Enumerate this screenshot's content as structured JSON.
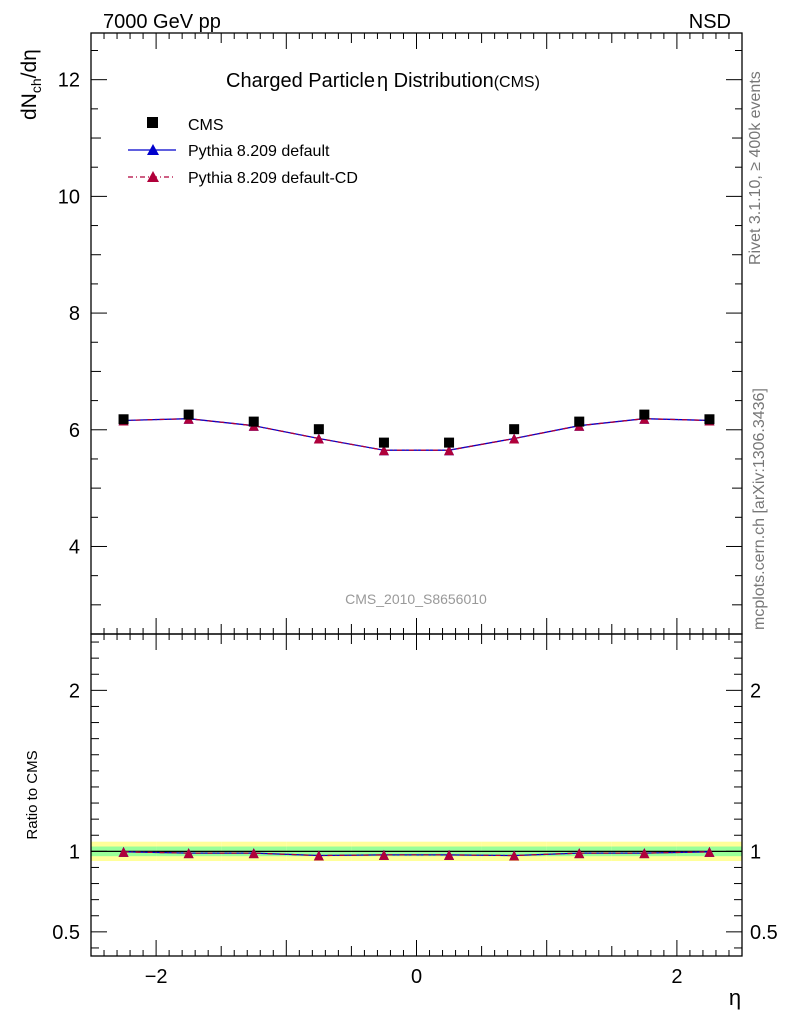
{
  "header": {
    "left_label": "7000 GeV pp",
    "right_label": "NSD"
  },
  "side_labels": {
    "rivet": "Rivet 3.1.10, ≥ 400k events",
    "mcplots": "mcplots.cern.ch [arXiv:1306.3436]"
  },
  "analysis_id": "CMS_2010_S8656010",
  "colors": {
    "cms": "#000000",
    "pythia_default": "#0000cc",
    "pythia_cd": "#b0003a",
    "band_inner": "#99ff99",
    "band_outer": "#ffff99"
  },
  "chart_data": [
    {
      "type": "scatter",
      "title": "Charged Particle",
      "title_symbol": "η",
      "title_rest": " Distribution",
      "title_suffix": "(CMS)",
      "ylabel": "dN",
      "ylabel_sub": "ch",
      "ylabel_rest": "/dη",
      "xlim": [
        -2.5,
        2.5
      ],
      "ylim": [
        2.5,
        12.8
      ],
      "yticks": [
        4,
        6,
        8,
        10,
        12
      ],
      "ytick_labels": [
        "4",
        "6",
        "8",
        "10",
        "12"
      ],
      "x": [
        -2.25,
        -1.75,
        -1.25,
        -0.75,
        -0.25,
        0.25,
        0.75,
        1.25,
        1.75,
        2.25
      ],
      "legend": [
        "CMS",
        "Pythia 8.209 default",
        "Pythia 8.209 default-CD"
      ],
      "series": [
        {
          "name": "CMS",
          "values": [
            6.18,
            6.26,
            6.14,
            6.01,
            5.78,
            5.78,
            6.01,
            6.14,
            6.26,
            6.18
          ]
        },
        {
          "name": "Pythia 8.209 default",
          "values": [
            6.16,
            6.19,
            6.07,
            5.85,
            5.65,
            5.65,
            5.85,
            6.07,
            6.19,
            6.16
          ]
        },
        {
          "name": "Pythia 8.209 default-CD",
          "values": [
            6.16,
            6.19,
            6.07,
            5.85,
            5.65,
            5.65,
            5.85,
            6.07,
            6.19,
            6.16
          ]
        }
      ]
    },
    {
      "type": "line",
      "ylabel": "Ratio to CMS",
      "xlabel": "η",
      "xlim": [
        -2.5,
        2.5
      ],
      "ylim": [
        0.35,
        2.35
      ],
      "yticks": [
        0.5,
        1,
        2
      ],
      "ytick_labels": [
        "0.5",
        "1",
        "2"
      ],
      "xticks": [
        -2,
        0,
        2
      ],
      "xtick_labels": [
        "−2",
        "0",
        "2"
      ],
      "x": [
        -2.25,
        -1.75,
        -1.25,
        -0.75,
        -0.25,
        0.25,
        0.75,
        1.25,
        1.75,
        2.25
      ],
      "band_inner": [
        0.03,
        0.03,
        0.03,
        0.03,
        0.03,
        0.03,
        0.03,
        0.03,
        0.03,
        0.03
      ],
      "band_outer": [
        0.06,
        0.06,
        0.06,
        0.06,
        0.06,
        0.06,
        0.06,
        0.06,
        0.06,
        0.06
      ],
      "series": [
        {
          "name": "Pythia 8.209 default",
          "values": [
            0.997,
            0.989,
            0.989,
            0.974,
            0.978,
            0.978,
            0.974,
            0.989,
            0.989,
            0.997
          ]
        },
        {
          "name": "Pythia 8.209 default-CD",
          "values": [
            0.997,
            0.989,
            0.989,
            0.974,
            0.978,
            0.978,
            0.974,
            0.989,
            0.989,
            0.997
          ]
        }
      ]
    }
  ]
}
